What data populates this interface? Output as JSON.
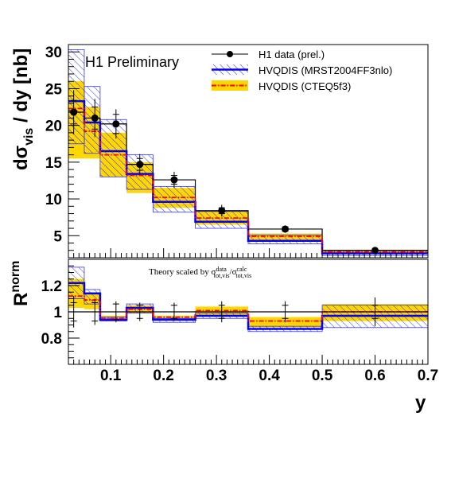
{
  "chart_data": [
    {
      "type": "line",
      "panel": "upper",
      "annotation": "H1 Preliminary",
      "ylabel": "dσvis / dy [nb]",
      "ylabel_main": "dσ",
      "ylabel_sub": "vis",
      "ylabel_rest": " / dy [nb]",
      "xlim": [
        0.02,
        0.7
      ],
      "ylim": [
        2,
        31
      ],
      "yticks": [
        5,
        10,
        15,
        20,
        25,
        30
      ],
      "bin_edges": [
        0.02,
        0.05,
        0.08,
        0.13,
        0.18,
        0.26,
        0.36,
        0.5,
        0.7
      ],
      "bin_centers": [
        0.03,
        0.07,
        0.11,
        0.155,
        0.22,
        0.31,
        0.43,
        0.6
      ],
      "legend": {
        "position": "top-right",
        "entries": [
          "H1 data (prel.)",
          "HVQDIS (MRST2004FF3nlo)",
          "HVQDIS (CTEQ5f3)"
        ]
      },
      "series": [
        {
          "name": "H1 data (prel.)",
          "color": "#000000",
          "values": [
            21.8,
            21.0,
            20.2,
            14.7,
            12.6,
            8.4,
            5.9,
            3.0
          ],
          "stat_err": [
            1.6,
            1.5,
            1.3,
            0.8,
            0.6,
            0.4,
            0.3,
            0.15
          ],
          "tot_err": [
            3.0,
            2.6,
            2.0,
            1.4,
            1.1,
            0.8,
            0.5,
            0.3
          ]
        },
        {
          "name": "HVQDIS (MRST2004FF3nlo)",
          "color": "#0000ff",
          "values": [
            23.3,
            20.4,
            16.5,
            13.4,
            9.6,
            6.9,
            4.3,
            2.6
          ],
          "band_low": [
            17.5,
            16.2,
            13.0,
            11.3,
            8.2,
            6.0,
            3.9,
            2.3
          ],
          "band_high": [
            30.3,
            25.3,
            20.8,
            16.0,
            11.7,
            8.3,
            5.1,
            3.0
          ]
        },
        {
          "name": "HVQDIS (CTEQ5f3)",
          "color": "#ff0000",
          "band_color": "#ffd700",
          "values": [
            22.3,
            19.2,
            16.0,
            13.2,
            10.2,
            7.4,
            4.9,
            2.8
          ],
          "band_low": [
            15.5,
            15.5,
            13.0,
            10.8,
            8.8,
            6.5,
            4.3,
            2.5
          ],
          "band_high": [
            26.0,
            22.5,
            19.0,
            15.0,
            11.5,
            8.3,
            5.3,
            3.0
          ]
        }
      ]
    },
    {
      "type": "line",
      "panel": "lower",
      "ylabel": "R norm",
      "ylabel_main": "R",
      "ylabel_sup": "norm",
      "xlabel": "y",
      "note": "Theory scaled by σ data tot,vis / σ calc tot,vis",
      "note_parts": {
        "prefix": "Theory scaled by σ",
        "sup1": "data",
        "sub1": "tot,vis",
        "mid": "/σ",
        "sup2": "calc",
        "sub2": "tot,vis"
      },
      "xlim": [
        0.02,
        0.7
      ],
      "ylim": [
        0.6,
        1.4
      ],
      "yticks": [
        0.8,
        1,
        1.2
      ],
      "ytick_labels": [
        "0.8",
        "1",
        "1.2"
      ],
      "xticks": [
        0.1,
        0.2,
        0.3,
        0.4,
        0.5,
        0.6,
        0.7
      ],
      "xtick_labels": [
        "0.1",
        "0.2",
        "0.3",
        "0.4",
        "0.5",
        "0.6",
        "0.7"
      ],
      "bin_edges": [
        0.02,
        0.05,
        0.08,
        0.13,
        0.18,
        0.26,
        0.36,
        0.5,
        0.7
      ],
      "bin_centers": [
        0.03,
        0.07,
        0.11,
        0.155,
        0.22,
        0.31,
        0.43,
        0.6
      ],
      "series": [
        {
          "name": "H1 data (prel.)",
          "values": [
            1.0,
            1.0,
            1.0,
            1.0,
            1.0,
            1.0,
            1.0,
            1.0
          ],
          "stat_err": [
            0.07,
            0.07,
            0.06,
            0.05,
            0.05,
            0.05,
            0.05,
            0.05
          ],
          "tot_err": [
            0.12,
            0.1,
            0.08,
            0.07,
            0.07,
            0.08,
            0.08,
            0.11
          ]
        },
        {
          "name": "HVQDIS (MRST2004FF3nlo)",
          "values": [
            1.22,
            1.14,
            0.94,
            1.03,
            0.94,
            0.97,
            0.87,
            0.97
          ],
          "band_low": [
            1.1,
            1.06,
            0.93,
            0.99,
            0.92,
            0.95,
            0.85,
            0.88
          ],
          "band_high": [
            1.34,
            1.17,
            0.96,
            1.06,
            0.95,
            0.99,
            0.89,
            1.05
          ]
        },
        {
          "name": "HVQDIS (CTEQ5f3)",
          "values": [
            1.12,
            1.09,
            0.95,
            1.02,
            0.96,
            1.01,
            0.93,
            1.0
          ],
          "band_low": [
            1.03,
            1.02,
            0.94,
            0.99,
            0.95,
            0.97,
            0.88,
            0.93
          ],
          "band_high": [
            1.25,
            1.15,
            0.97,
            1.05,
            0.97,
            1.04,
            0.96,
            1.06
          ]
        }
      ]
    }
  ]
}
